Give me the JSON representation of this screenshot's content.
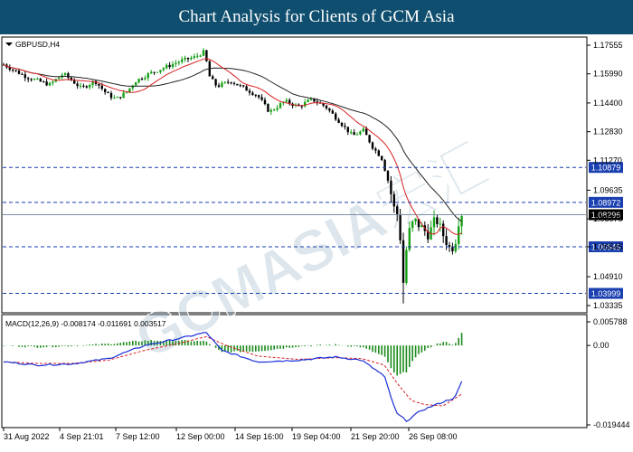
{
  "header": {
    "title": "Chart Analysis for Clients of GCM Asia"
  },
  "price_panel": {
    "symbol": "GBPUSD,H4",
    "axis_ticks": [
      "1.17555",
      "1.15990",
      "1.14400",
      "1.12830",
      "1.11270",
      "1.09635",
      "1.08070",
      "1.06545",
      "1.04910",
      "1.03335"
    ],
    "levels": [
      {
        "value": "1.10879",
        "color": "#1a3fb0"
      },
      {
        "value": "1.08972",
        "color": "#1a3fb0"
      },
      {
        "value": "1.08296",
        "color": "#000000"
      },
      {
        "value": "1.06545",
        "color": "#1a3fb0"
      },
      {
        "value": "1.03999",
        "color": "#1a3fb0"
      }
    ]
  },
  "macd_panel": {
    "label": "MACD(12,26,9) -0.008174 -0.011691 0.003517",
    "axis_ticks": [
      "0.005788",
      "0.00",
      "-0.019444"
    ]
  },
  "time_axis": [
    "31 Aug 2022",
    "4 Sep 21:01",
    "7 Sep 12:00",
    "12 Sep 00:00",
    "14 Sep 16:00",
    "19 Sep 04:00",
    "21 Sep 20:00",
    "26 Sep 08:00"
  ],
  "watermark": "GCMASIA宏汇",
  "colors": {
    "bull": "#16a016",
    "bear": "#000000",
    "ma_fast": "#d82020",
    "ma_slow": "#222222",
    "macd": "#1a2fd6",
    "signal": "#d82020",
    "hist": "#1a8a1a",
    "level": "#1a3fb0",
    "banner": "#0f4e6e"
  },
  "chart_data": {
    "type": "candlestick",
    "symbol": "GBPUSD",
    "timeframe": "H4",
    "ylim": [
      1.03335,
      1.18
    ],
    "key_points": [
      {
        "x": "31 Aug 2022",
        "close": 1.166
      },
      {
        "x": "7 Sep 12:00",
        "close": 1.152
      },
      {
        "x": "12 Sep 00:00",
        "close": 1.172
      },
      {
        "x": "14 Sep 16:00",
        "close": 1.152
      },
      {
        "x": "19 Sep 04:00",
        "close": 1.143
      },
      {
        "x": "21 Sep 20:00",
        "close": 1.125
      },
      {
        "x": "26 Sep 08:00",
        "low": 1.035,
        "close": 1.075
      },
      {
        "x": "last",
        "close": 1.08296
      }
    ],
    "series": [
      {
        "name": "MACD(12,26,9)",
        "values": [
          -0.008174,
          -0.011691,
          0.003517
        ]
      }
    ]
  }
}
